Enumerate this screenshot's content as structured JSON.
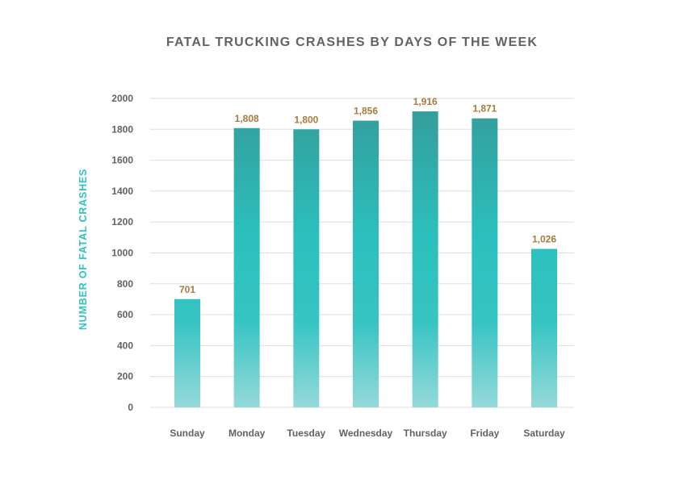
{
  "chart_data": {
    "type": "bar",
    "title": "FATAL TRUCKING CRASHES BY DAYS OF THE WEEK",
    "xlabel": "",
    "ylabel": "NUMBER OF FATAL CRASHES",
    "categories": [
      "Sunday",
      "Monday",
      "Tuesday",
      "Wednesday",
      "Thursday",
      "Friday",
      "Saturday"
    ],
    "values": [
      701,
      1808,
      1800,
      1856,
      1916,
      1871,
      1026
    ],
    "value_labels": [
      "701",
      "1,808",
      "1,800",
      "1,856",
      "1,916",
      "1,871",
      "1,026"
    ],
    "ylim": [
      0,
      2000
    ],
    "yticks": [
      0,
      200,
      400,
      600,
      800,
      1000,
      1200,
      1400,
      1600,
      1800,
      2000
    ],
    "grid": true,
    "colors": {
      "bar_top": "#359b98",
      "bar_mid": "#2bc0bd",
      "bar_bottom": "#95d9d9",
      "value_label": "#a8793d",
      "axis_label": "#2fc3c0",
      "text": "#5f6266",
      "grid": "#dddddd"
    }
  }
}
